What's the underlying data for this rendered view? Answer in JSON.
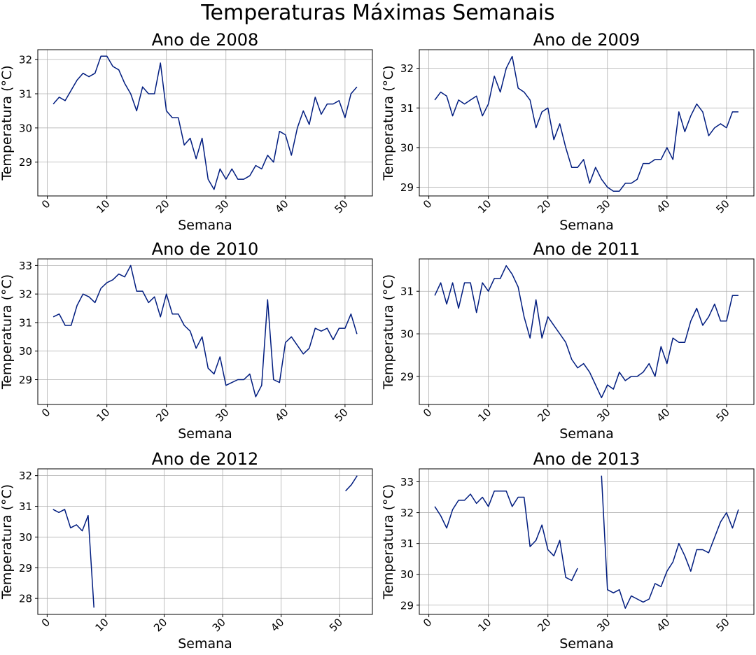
{
  "figure": {
    "suptitle": "Temperaturas Máximas Semanais"
  },
  "colors": {
    "line": "#001c7f",
    "grid": "#b0b0b0",
    "axis": "#000000"
  },
  "chart_data": [
    {
      "type": "line",
      "title": "Ano de 2008",
      "xlabel": "Semana",
      "ylabel": "Temperatura (°C)",
      "xlim": [
        -1.6,
        54.6
      ],
      "ylim": [
        28.01,
        32.29
      ],
      "xticks": [
        0,
        10,
        20,
        30,
        40,
        50
      ],
      "yticks": [
        29,
        30,
        31,
        32
      ],
      "grid": true,
      "x": [
        1,
        2,
        3,
        4,
        5,
        6,
        7,
        8,
        9,
        10,
        11,
        12,
        13,
        14,
        15,
        16,
        17,
        18,
        19,
        20,
        21,
        22,
        23,
        24,
        25,
        26,
        27,
        28,
        29,
        30,
        31,
        32,
        33,
        34,
        35,
        36,
        37,
        38,
        39,
        40,
        41,
        42,
        43,
        44,
        45,
        46,
        47,
        48,
        49,
        50,
        51,
        52
      ],
      "series": [
        {
          "values": [
            30.7,
            30.9,
            30.8,
            31.1,
            31.4,
            31.6,
            31.5,
            31.6,
            32.1,
            32.1,
            31.8,
            31.7,
            31.3,
            31.0,
            30.5,
            31.2,
            31.0,
            31.0,
            31.9,
            30.5,
            30.3,
            30.3,
            29.5,
            29.7,
            29.1,
            29.7,
            28.5,
            28.2,
            28.8,
            28.5,
            28.8,
            28.5,
            28.5,
            28.6,
            28.9,
            28.8,
            29.2,
            29.0,
            29.9,
            29.8,
            29.2,
            30.0,
            30.5,
            30.1,
            30.9,
            30.4,
            30.7,
            30.7,
            30.8,
            30.3,
            31.0,
            31.2
          ]
        }
      ]
    },
    {
      "type": "line",
      "title": "Ano de 2009",
      "xlabel": "Semana",
      "ylabel": "Temperatura (°C)",
      "xlim": [
        -1.6,
        54.6
      ],
      "ylim": [
        28.78,
        32.47
      ],
      "xticks": [
        0,
        10,
        20,
        30,
        40,
        50
      ],
      "yticks": [
        29,
        30,
        31,
        32
      ],
      "grid": true,
      "x": [
        1,
        2,
        3,
        4,
        5,
        6,
        7,
        8,
        9,
        10,
        11,
        12,
        13,
        14,
        15,
        16,
        17,
        18,
        19,
        20,
        21,
        22,
        23,
        24,
        25,
        26,
        27,
        28,
        29,
        30,
        31,
        32,
        33,
        34,
        35,
        36,
        37,
        38,
        39,
        40,
        41,
        42,
        43,
        44,
        45,
        46,
        47,
        48,
        49,
        50,
        51,
        52
      ],
      "series": [
        {
          "values": [
            31.2,
            31.4,
            31.3,
            30.8,
            31.2,
            31.1,
            31.2,
            31.3,
            30.8,
            31.1,
            31.8,
            31.4,
            32.0,
            32.3,
            31.5,
            31.4,
            31.2,
            30.5,
            30.9,
            31.0,
            30.2,
            30.6,
            30.0,
            29.5,
            29.5,
            29.7,
            29.1,
            29.5,
            29.2,
            29.0,
            28.9,
            28.9,
            29.1,
            29.1,
            29.2,
            29.6,
            29.6,
            29.7,
            29.7,
            30.0,
            29.7,
            30.9,
            30.4,
            30.8,
            31.1,
            30.9,
            30.3,
            30.5,
            30.6,
            30.5,
            30.9,
            30.9
          ]
        }
      ]
    },
    {
      "type": "line",
      "title": "Ano de 2010",
      "xlabel": "Semana",
      "ylabel": "Temperatura (°C)",
      "xlim": [
        -1.6,
        54.6
      ],
      "ylim": [
        28.13,
        33.23
      ],
      "xticks": [
        0,
        10,
        20,
        30,
        40,
        50
      ],
      "yticks": [
        29,
        30,
        31,
        32,
        33
      ],
      "grid": true,
      "x": [
        1,
        2,
        3,
        4,
        5,
        6,
        7,
        8,
        9,
        10,
        11,
        12,
        13,
        14,
        15,
        16,
        17,
        18,
        19,
        20,
        21,
        22,
        23,
        24,
        25,
        26,
        27,
        28,
        29,
        30,
        31,
        32,
        33,
        34,
        35,
        36,
        37,
        38,
        39,
        40,
        41,
        42,
        43,
        44,
        45,
        46,
        47,
        48,
        49,
        50,
        51,
        52
      ],
      "series": [
        {
          "values": [
            31.2,
            31.3,
            30.9,
            30.9,
            31.6,
            32.0,
            31.9,
            31.7,
            32.2,
            32.4,
            32.5,
            32.7,
            32.6,
            33.0,
            32.1,
            32.1,
            31.7,
            31.9,
            31.2,
            32.0,
            31.3,
            31.3,
            30.9,
            30.7,
            30.1,
            30.5,
            29.4,
            29.2,
            29.8,
            28.8,
            28.9,
            29.0,
            29.0,
            29.2,
            28.4,
            28.8,
            31.8,
            29.0,
            28.9,
            30.3,
            30.5,
            30.2,
            29.9,
            30.1,
            30.8,
            30.7,
            30.8,
            30.4,
            30.8,
            30.8,
            31.3,
            30.6
          ]
        }
      ]
    },
    {
      "type": "line",
      "title": "Ano de 2011",
      "xlabel": "Semana",
      "ylabel": "Temperatura (°C)",
      "xlim": [
        -1.6,
        54.6
      ],
      "ylim": [
        28.34,
        31.76
      ],
      "xticks": [
        0,
        10,
        20,
        30,
        40,
        50
      ],
      "yticks": [
        29,
        30,
        31
      ],
      "grid": true,
      "x": [
        1,
        2,
        3,
        4,
        5,
        6,
        7,
        8,
        9,
        10,
        11,
        12,
        13,
        14,
        15,
        16,
        17,
        18,
        19,
        20,
        21,
        22,
        23,
        24,
        25,
        26,
        27,
        28,
        29,
        30,
        31,
        32,
        33,
        34,
        35,
        36,
        37,
        38,
        39,
        40,
        41,
        42,
        43,
        44,
        45,
        46,
        47,
        48,
        49,
        50,
        51,
        52
      ],
      "series": [
        {
          "values": [
            30.9,
            31.2,
            30.7,
            31.2,
            30.6,
            31.2,
            31.2,
            30.5,
            31.2,
            31.0,
            31.3,
            31.3,
            31.6,
            31.4,
            31.1,
            30.4,
            29.9,
            30.8,
            29.9,
            30.4,
            30.2,
            30.0,
            29.8,
            29.4,
            29.2,
            29.3,
            29.1,
            28.8,
            28.5,
            28.8,
            28.7,
            29.1,
            28.9,
            29.0,
            29.0,
            29.1,
            29.3,
            29.0,
            29.7,
            29.3,
            29.9,
            29.8,
            29.8,
            30.3,
            30.6,
            30.2,
            30.4,
            30.7,
            30.3,
            30.3,
            30.9,
            30.9
          ]
        }
      ]
    },
    {
      "type": "line",
      "title": "Ano de 2012",
      "xlabel": "Semana",
      "ylabel": "Temperatura (°C)",
      "xlim": [
        -1.6,
        55.6
      ],
      "ylim": [
        27.48,
        32.22
      ],
      "xticks": [
        0,
        10,
        20,
        30,
        40,
        50
      ],
      "yticks": [
        28,
        29,
        30,
        31,
        32
      ],
      "grid": true,
      "series": [
        {
          "x": [
            1,
            2,
            3,
            4,
            5,
            6,
            7,
            8
          ],
          "values": [
            30.9,
            30.8,
            30.9,
            30.3,
            30.4,
            30.2,
            30.7,
            27.7
          ]
        },
        {
          "x": [
            51,
            52,
            53
          ],
          "values": [
            31.5,
            31.7,
            32.0
          ]
        }
      ]
    },
    {
      "type": "line",
      "title": "Ano de 2013",
      "xlabel": "Semana",
      "ylabel": "Temperatura (°C)",
      "xlim": [
        -1.6,
        54.6
      ],
      "ylim": [
        28.7,
        33.42
      ],
      "xticks": [
        0,
        10,
        20,
        30,
        40,
        50
      ],
      "yticks": [
        29,
        30,
        31,
        32,
        33
      ],
      "grid": true,
      "series": [
        {
          "x": [
            1,
            2,
            3,
            4,
            5,
            6,
            7,
            8,
            9,
            10,
            11,
            12,
            13,
            14,
            15,
            16,
            17,
            18,
            19,
            20,
            21,
            22,
            23,
            24,
            25
          ],
          "values": [
            32.2,
            31.9,
            31.5,
            32.1,
            32.4,
            32.4,
            32.6,
            32.3,
            32.5,
            32.2,
            32.7,
            32.7,
            32.7,
            32.2,
            32.5,
            32.5,
            30.9,
            31.1,
            31.6,
            30.8,
            30.6,
            31.1,
            29.9,
            29.8,
            30.2
          ]
        },
        {
          "x": [
            29,
            30,
            31,
            32,
            33,
            34,
            35,
            36,
            37,
            38,
            39,
            40,
            41,
            42,
            43,
            44,
            45,
            46,
            47,
            48,
            49,
            50,
            51,
            52
          ],
          "values": [
            33.2,
            29.5,
            29.4,
            29.5,
            28.9,
            29.3,
            29.2,
            29.1,
            29.2,
            29.7,
            29.6,
            30.1,
            30.4,
            31.0,
            30.6,
            30.1,
            30.8,
            30.8,
            30.7,
            31.2,
            31.7,
            32.0,
            31.5,
            32.1
          ]
        }
      ]
    }
  ]
}
